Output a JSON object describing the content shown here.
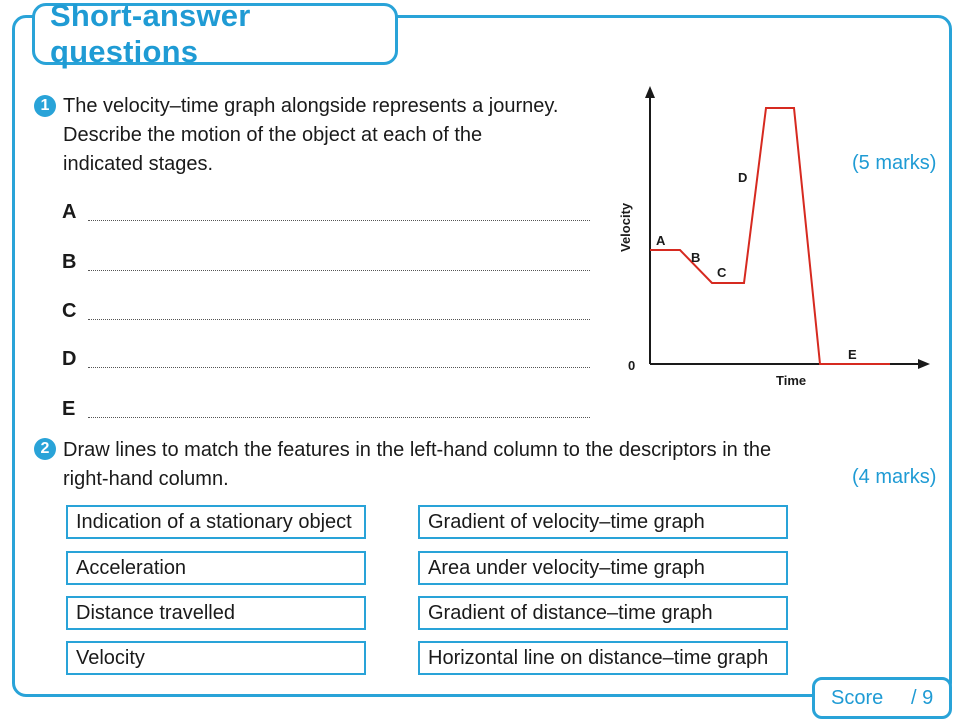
{
  "header": {
    "title": "Short-answer questions"
  },
  "q1": {
    "number": "1",
    "lines": [
      "The velocity–time graph alongside represents a journey.",
      "Describe the motion of the object at each of the",
      "indicated stages."
    ],
    "marks": "(5 marks)",
    "answer_labels": [
      "A",
      "B",
      "C",
      "D",
      "E"
    ]
  },
  "graph": {
    "y_axis_label": "Velocity",
    "x_axis_label": "Time",
    "origin_label": "0",
    "line_color": "#d62a20",
    "stage_labels": [
      "A",
      "B",
      "C",
      "D",
      "E"
    ]
  },
  "q2": {
    "number": "2",
    "lines": [
      "Draw lines to match the features in the left-hand column to the descriptors in the",
      "right-hand column."
    ],
    "marks": "(4 marks)",
    "left_items": [
      "Indication of a stationary object",
      "Acceleration",
      "Distance travelled",
      "Velocity"
    ],
    "right_items": [
      "Gradient of velocity–time graph",
      "Area under velocity–time graph",
      "Gradient of distance–time graph",
      "Horizontal line on distance–time graph"
    ]
  },
  "score": {
    "label": "Score",
    "total": "/ 9"
  },
  "colors": {
    "accent": "#29a3d8",
    "accent_text": "#1f9bd4"
  }
}
